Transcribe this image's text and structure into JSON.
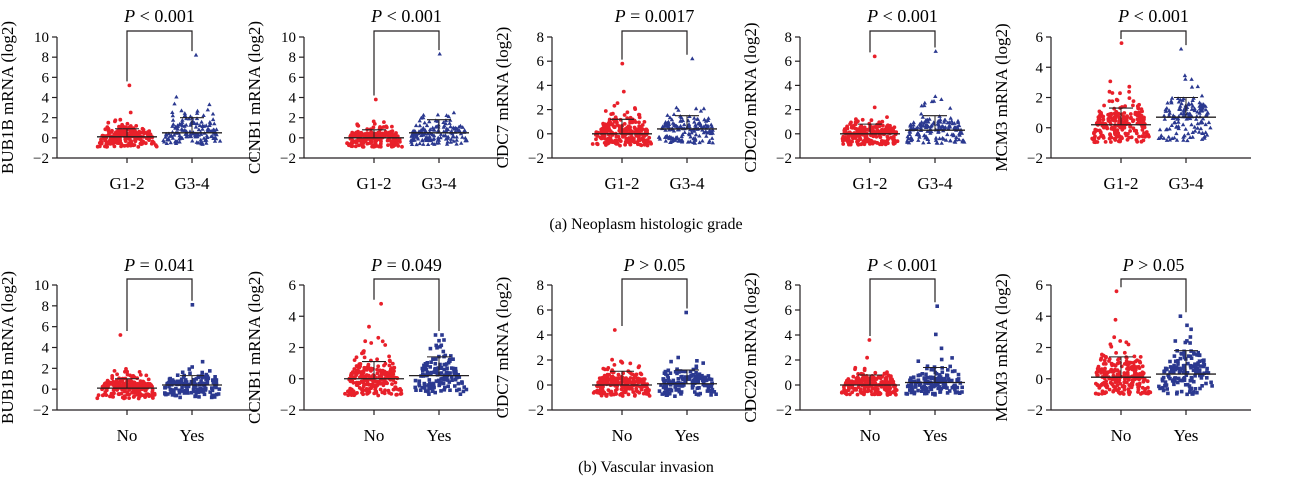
{
  "panels": [
    {
      "caption": "(a)  Neoplasm histologic grade",
      "categories": [
        "G1-2",
        "G3-4"
      ],
      "plots": [
        {
          "ylabel": "BUB1B mRNA (log2)",
          "ylim": [
            -2,
            10
          ],
          "yticks": [
            -2,
            0,
            2,
            4,
            6,
            8,
            10
          ],
          "p_label": "P",
          "p_text": " < 0.001"
        },
        {
          "ylabel": "CCNB1 mRNA (log2)",
          "ylim": [
            -2,
            10
          ],
          "yticks": [
            -2,
            0,
            2,
            4,
            6,
            8,
            10
          ],
          "p_label": "P",
          "p_text": " < 0.001"
        },
        {
          "ylabel": "CDC7 mRNA (log2)",
          "ylim": [
            -2,
            8
          ],
          "yticks": [
            -2,
            0,
            2,
            4,
            6,
            8
          ],
          "p_label": "P",
          "p_text": " = 0.0017"
        },
        {
          "ylabel": "CDC20 mRNA (log2)",
          "ylim": [
            -2,
            8
          ],
          "yticks": [
            -2,
            0,
            2,
            4,
            6,
            8
          ],
          "p_label": "P",
          "p_text": " < 0.001"
        },
        {
          "ylabel": "MCM3 mRNA (log2)",
          "ylim": [
            -2,
            6
          ],
          "yticks": [
            -2,
            0,
            2,
            4,
            6
          ],
          "p_label": "P",
          "p_text": " < 0.001"
        }
      ]
    },
    {
      "caption": "(b)  Vascular invasion",
      "categories": [
        "No",
        "Yes"
      ],
      "plots": [
        {
          "ylabel": "BUB1B mRNA (log2)",
          "ylim": [
            -2,
            10
          ],
          "yticks": [
            -2,
            0,
            2,
            4,
            6,
            8,
            10
          ],
          "p_label": "P",
          "p_text": " = 0.041"
        },
        {
          "ylabel": "CCNB1 mRNA (log2)",
          "ylim": [
            -2,
            6
          ],
          "yticks": [
            -2,
            0,
            2,
            4,
            6
          ],
          "p_label": "P",
          "p_text": " = 0.049"
        },
        {
          "ylabel": "CDC7 mRNA (log2)",
          "ylim": [
            -2,
            8
          ],
          "yticks": [
            -2,
            0,
            2,
            4,
            6,
            8
          ],
          "p_label": "P",
          "p_text": " > 0.05"
        },
        {
          "ylabel": "CDC20 mRNA (log2)",
          "ylim": [
            -2,
            8
          ],
          "yticks": [
            -2,
            0,
            2,
            4,
            6,
            8
          ],
          "p_label": "P",
          "p_text": " < 0.001"
        },
        {
          "ylabel": "MCM3 mRNA (log2)",
          "ylim": [
            -2,
            6
          ],
          "yticks": [
            -2,
            0,
            2,
            4,
            6
          ],
          "p_label": "P",
          "p_text": " > 0.05"
        }
      ]
    }
  ],
  "chart_data": [
    {
      "type": "scatter",
      "panel": "a",
      "ylabel": "BUB1B mRNA (log2)",
      "categories": [
        "G1-2",
        "G3-4"
      ],
      "ylim": [
        -2,
        10
      ],
      "series": [
        {
          "group": "G1-2",
          "marker": "circle",
          "color": "#e8202a",
          "mean": 0.1,
          "sd_upper": 0.9,
          "min": -0.9,
          "max": 5.2
        },
        {
          "group": "G3-4",
          "marker": "triangle",
          "color": "#2b3990",
          "mean": 0.5,
          "sd_upper": 2.0,
          "min": -0.7,
          "max": 8.2
        }
      ],
      "p_value": "P < 0.001"
    },
    {
      "type": "scatter",
      "panel": "a",
      "ylabel": "CCNB1 mRNA (log2)",
      "categories": [
        "G1-2",
        "G3-4"
      ],
      "ylim": [
        -2,
        10
      ],
      "series": [
        {
          "group": "G1-2",
          "marker": "circle",
          "color": "#e8202a",
          "mean": 0.0,
          "sd_upper": 0.8,
          "min": -0.9,
          "max": 3.8
        },
        {
          "group": "G3-4",
          "marker": "triangle",
          "color": "#2b3990",
          "mean": 0.5,
          "sd_upper": 1.8,
          "min": -0.7,
          "max": 8.3
        }
      ],
      "p_value": "P < 0.001"
    },
    {
      "type": "scatter",
      "panel": "a",
      "ylabel": "CDC7 mRNA (log2)",
      "categories": [
        "G1-2",
        "G3-4"
      ],
      "ylim": [
        -2,
        8
      ],
      "series": [
        {
          "group": "G1-2",
          "marker": "circle",
          "color": "#e8202a",
          "mean": 0.0,
          "sd_upper": 1.2,
          "min": -1.0,
          "max": 5.8
        },
        {
          "group": "G3-4",
          "marker": "triangle",
          "color": "#2b3990",
          "mean": 0.4,
          "sd_upper": 1.5,
          "min": -0.8,
          "max": 6.2
        }
      ],
      "p_value": "P = 0.0017"
    },
    {
      "type": "scatter",
      "panel": "a",
      "ylabel": "CDC20 mRNA (log2)",
      "categories": [
        "G1-2",
        "G3-4"
      ],
      "ylim": [
        -2,
        8
      ],
      "series": [
        {
          "group": "G1-2",
          "marker": "circle",
          "color": "#e8202a",
          "mean": 0.0,
          "sd_upper": 0.8,
          "min": -0.9,
          "max": 6.4
        },
        {
          "group": "G3-4",
          "marker": "triangle",
          "color": "#2b3990",
          "mean": 0.3,
          "sd_upper": 1.5,
          "min": -0.8,
          "max": 6.8
        }
      ],
      "p_value": "P < 0.001"
    },
    {
      "type": "scatter",
      "panel": "a",
      "ylabel": "MCM3 mRNA (log2)",
      "categories": [
        "G1-2",
        "G3-4"
      ],
      "ylim": [
        -2,
        6
      ],
      "series": [
        {
          "group": "G1-2",
          "marker": "circle",
          "color": "#e8202a",
          "mean": 0.2,
          "sd_upper": 1.3,
          "min": -1.0,
          "max": 5.6
        },
        {
          "group": "G3-4",
          "marker": "triangle",
          "color": "#2b3990",
          "mean": 0.7,
          "sd_upper": 2.0,
          "min": -0.9,
          "max": 5.2
        }
      ],
      "p_value": "P < 0.001"
    },
    {
      "type": "scatter",
      "panel": "b",
      "ylabel": "BUB1B mRNA (log2)",
      "categories": [
        "No",
        "Yes"
      ],
      "ylim": [
        -2,
        10
      ],
      "series": [
        {
          "group": "No",
          "marker": "circle",
          "color": "#e8202a",
          "mean": 0.1,
          "sd_upper": 1.0,
          "min": -0.9,
          "max": 5.2
        },
        {
          "group": "Yes",
          "marker": "square",
          "color": "#2b3990",
          "mean": 0.4,
          "sd_upper": 1.3,
          "min": -0.8,
          "max": 8.1
        }
      ],
      "p_value": "P = 0.041"
    },
    {
      "type": "scatter",
      "panel": "b",
      "ylabel": "CCNB1 mRNA (log2)",
      "categories": [
        "No",
        "Yes"
      ],
      "ylim": [
        -2,
        6
      ],
      "series": [
        {
          "group": "No",
          "marker": "circle",
          "color": "#e8202a",
          "mean": 0.0,
          "sd_upper": 1.1,
          "min": -1.1,
          "max": 4.8
        },
        {
          "group": "Yes",
          "marker": "square",
          "color": "#2b3990",
          "mean": 0.2,
          "sd_upper": 1.4,
          "min": -1.0,
          "max": 2.8
        }
      ],
      "p_value": "P = 0.049"
    },
    {
      "type": "scatter",
      "panel": "b",
      "ylabel": "CDC7 mRNA (log2)",
      "categories": [
        "No",
        "Yes"
      ],
      "ylim": [
        -2,
        8
      ],
      "series": [
        {
          "group": "No",
          "marker": "circle",
          "color": "#e8202a",
          "mean": 0.0,
          "sd_upper": 1.1,
          "min": -0.9,
          "max": 4.4
        },
        {
          "group": "Yes",
          "marker": "square",
          "color": "#2b3990",
          "mean": 0.1,
          "sd_upper": 1.2,
          "min": -0.9,
          "max": 5.8
        }
      ],
      "p_value": "P > 0.05"
    },
    {
      "type": "scatter",
      "panel": "b",
      "ylabel": "CDC20 mRNA (log2)",
      "categories": [
        "No",
        "Yes"
      ],
      "ylim": [
        -2,
        8
      ],
      "series": [
        {
          "group": "No",
          "marker": "circle",
          "color": "#e8202a",
          "mean": 0.0,
          "sd_upper": 0.8,
          "min": -0.8,
          "max": 3.6
        },
        {
          "group": "Yes",
          "marker": "square",
          "color": "#2b3990",
          "mean": 0.2,
          "sd_upper": 1.4,
          "min": -0.8,
          "max": 6.3
        }
      ],
      "p_value": "P < 0.001"
    },
    {
      "type": "scatter",
      "panel": "b",
      "ylabel": "MCM3 mRNA (log2)",
      "categories": [
        "No",
        "Yes"
      ],
      "ylim": [
        -2,
        6
      ],
      "series": [
        {
          "group": "No",
          "marker": "circle",
          "color": "#e8202a",
          "mean": 0.1,
          "sd_upper": 1.4,
          "min": -1.0,
          "max": 5.6
        },
        {
          "group": "Yes",
          "marker": "square",
          "color": "#2b3990",
          "mean": 0.3,
          "sd_upper": 1.8,
          "min": -1.0,
          "max": 4.0
        }
      ],
      "p_value": "P > 0.05"
    }
  ]
}
